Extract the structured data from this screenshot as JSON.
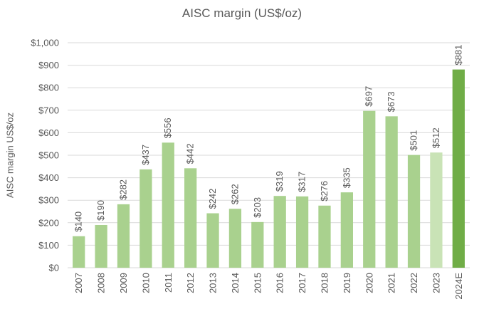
{
  "chart_data": {
    "type": "bar",
    "title": "AISC margin (US$/oz)",
    "xlabel": "",
    "ylabel": "AISC margin US$/oz",
    "categories": [
      "2007",
      "2008",
      "2009",
      "2010",
      "2011",
      "2012",
      "2013",
      "2014",
      "2015",
      "2016",
      "2017",
      "2018",
      "2019",
      "2020",
      "2021",
      "2022",
      "2023",
      "2024E"
    ],
    "values": [
      140,
      190,
      282,
      437,
      556,
      442,
      242,
      262,
      203,
      319,
      317,
      276,
      335,
      697,
      673,
      501,
      512,
      881
    ],
    "value_labels": [
      "$140",
      "$190",
      "$282",
      "$437",
      "$556",
      "$442",
      "$242",
      "$262",
      "$203",
      "$319",
      "$317",
      "$276",
      "$335",
      "$697",
      "$673",
      "$501",
      "$512",
      "$881"
    ],
    "colors": [
      "#a9d18e",
      "#a9d18e",
      "#a9d18e",
      "#a9d18e",
      "#a9d18e",
      "#a9d18e",
      "#a9d18e",
      "#a9d18e",
      "#a9d18e",
      "#a9d18e",
      "#a9d18e",
      "#a9d18e",
      "#a9d18e",
      "#a9d18e",
      "#a9d18e",
      "#a9d18e",
      "#c9e3b6",
      "#70ad47"
    ],
    "ylim": [
      0,
      1000
    ],
    "yticks": [
      0,
      100,
      200,
      300,
      400,
      500,
      600,
      700,
      800,
      900,
      1000
    ],
    "ytick_labels": [
      "$0",
      "$100",
      "$200",
      "$300",
      "$400",
      "$500",
      "$600",
      "$700",
      "$800",
      "$900",
      "$1,000"
    ],
    "grid": true,
    "legend": "none"
  }
}
